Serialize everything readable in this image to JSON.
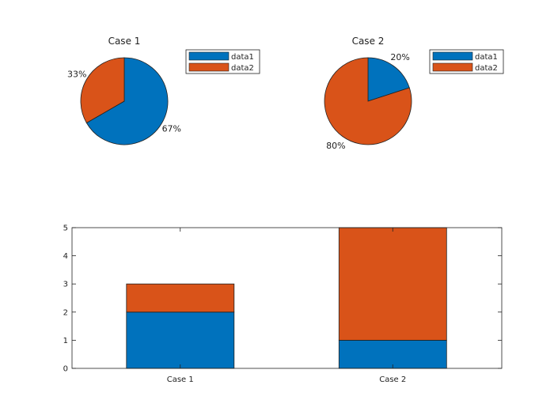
{
  "figure": {
    "background": "#ffffff"
  },
  "colors": {
    "data1": "#0072BD",
    "data2": "#D95319"
  },
  "chart_data": [
    {
      "type": "pie",
      "title": "Case 1",
      "slices": [
        {
          "name": "data1",
          "value": 2,
          "label": "67%"
        },
        {
          "name": "data2",
          "value": 1,
          "label": "33%"
        }
      ],
      "legend": {
        "entries": [
          "data1",
          "data2"
        ],
        "placement": "top-right"
      }
    },
    {
      "type": "pie",
      "title": "Case 2",
      "slices": [
        {
          "name": "data1",
          "value": 1,
          "label": "20%"
        },
        {
          "name": "data2",
          "value": 4,
          "label": "80%"
        }
      ],
      "legend": {
        "entries": [
          "data1",
          "data2"
        ],
        "placement": "top-right"
      }
    },
    {
      "type": "bar",
      "stacked": true,
      "categories": [
        "Case 1",
        "Case 2"
      ],
      "series": [
        {
          "values": [
            2,
            1
          ]
        },
        {
          "values": [
            1,
            4
          ]
        }
      ],
      "ylim": [
        0,
        5
      ],
      "yticks": [
        "0",
        "1",
        "2",
        "3",
        "4",
        "5"
      ],
      "grid": false,
      "legend": false
    }
  ]
}
